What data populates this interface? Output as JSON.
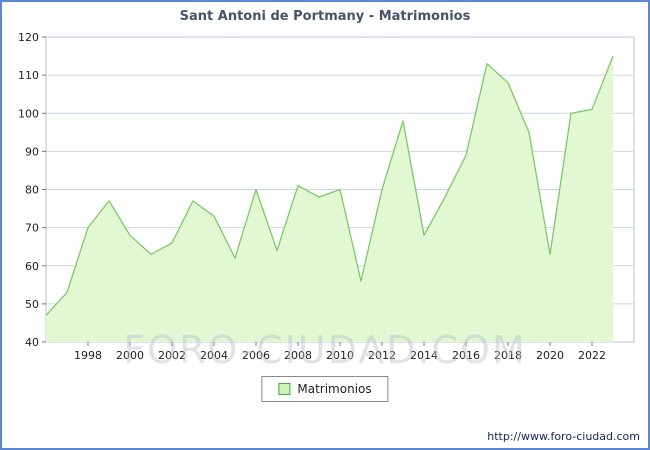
{
  "title": "Sant Antoni de Portmany - Matrimonios",
  "legend": {
    "label": "Matrimonios"
  },
  "watermark": "FORO-CIUDAD.COM",
  "footer_url": "http://www.foro-ciudad.com",
  "colors": {
    "frame_border": "#5b87d7",
    "area_fill": "#e2f8d2",
    "line": "#7dc868",
    "grid": "#c9d6ea",
    "plot_border": "#b9c6da",
    "tick": "#777777",
    "axis_text": "#222222",
    "legend_swatch_fill": "#ccf2b8",
    "legend_swatch_border": "#44aa44"
  },
  "chart_data": {
    "type": "area",
    "title": "Sant Antoni de Portmany - Matrimonios",
    "series_name": "Matrimonios",
    "years": [
      1996,
      1997,
      1998,
      1999,
      2000,
      2001,
      2002,
      2003,
      2004,
      2005,
      2006,
      2007,
      2008,
      2009,
      2010,
      2011,
      2012,
      2013,
      2014,
      2015,
      2016,
      2017,
      2018,
      2019,
      2020,
      2021,
      2022,
      2023
    ],
    "values": [
      47,
      53,
      70,
      77,
      68,
      63,
      66,
      77,
      73,
      62,
      80,
      64,
      81,
      78,
      80,
      56,
      80,
      98,
      68,
      78,
      89,
      113,
      108,
      95,
      63,
      100,
      101,
      115
    ],
    "xticks": [
      1998,
      2000,
      2002,
      2004,
      2006,
      2008,
      2010,
      2012,
      2014,
      2016,
      2018,
      2020,
      2022
    ],
    "yticks": [
      40,
      50,
      60,
      70,
      80,
      90,
      100,
      110,
      120
    ],
    "ylim": [
      40,
      120
    ],
    "grid": "horizontal",
    "legend_position": "bottom-center"
  }
}
